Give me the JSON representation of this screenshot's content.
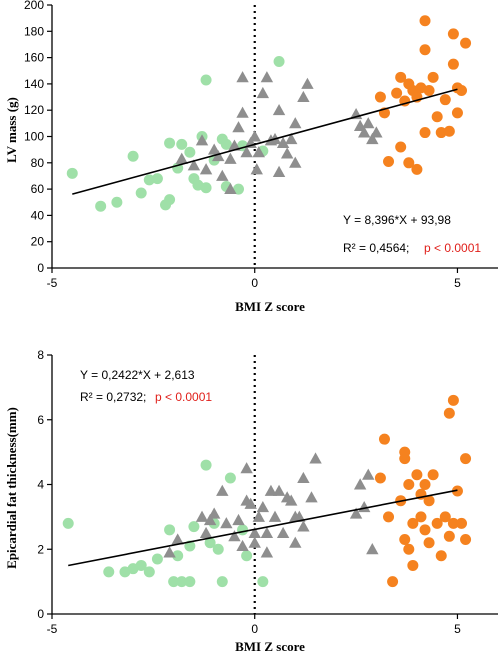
{
  "chart_data": [
    {
      "type": "scatter",
      "title": "",
      "xlabel": "BMI Z score",
      "ylabel": "LV mass (g)",
      "xlim": [
        -5,
        6
      ],
      "ylim": [
        0,
        200
      ],
      "xticks": [
        -5,
        0,
        5
      ],
      "xtick_labels": [
        "-5",
        "0",
        "5"
      ],
      "yticks": [
        0,
        20,
        40,
        60,
        80,
        100,
        120,
        140,
        160,
        180,
        200
      ],
      "ytick_labels": [
        "0",
        "20",
        "40",
        "60",
        "80",
        "100",
        "120",
        "140",
        "160",
        "180",
        "200"
      ],
      "grid": false,
      "vline_x": 0,
      "regression": {
        "slope": 8.396,
        "intercept": 93.98,
        "x_range": [
          -4.5,
          5
        ]
      },
      "equation_text": "Y = 8,396*X + 93,98",
      "r2_text": "R² = 0,4564;",
      "p_text": "p < 0.0001",
      "colors": {
        "green": "#9fe0a8",
        "gray": "#8e8e8e",
        "orange": "#f5821f",
        "line": "#000000",
        "p_value": "#e0201b"
      },
      "series": [
        {
          "marker": "circle",
          "color": "#9fe0a8",
          "points": [
            [
              -4.5,
              72
            ],
            [
              -3.8,
              47
            ],
            [
              -3.4,
              50
            ],
            [
              -3.0,
              85
            ],
            [
              -2.8,
              57
            ],
            [
              -2.6,
              67
            ],
            [
              -2.4,
              68
            ],
            [
              -2.2,
              48
            ],
            [
              -2.1,
              95
            ],
            [
              -2.1,
              52
            ],
            [
              -1.9,
              76
            ],
            [
              -1.8,
              94
            ],
            [
              -1.6,
              88
            ],
            [
              -1.5,
              68
            ],
            [
              -1.4,
              63
            ],
            [
              -1.3,
              100
            ],
            [
              -1.2,
              143
            ],
            [
              -1.2,
              61
            ],
            [
              -1.0,
              82
            ],
            [
              -0.8,
              98
            ],
            [
              -0.7,
              94
            ],
            [
              -0.7,
              62
            ],
            [
              -0.4,
              60
            ],
            [
              -0.3,
              93
            ],
            [
              0.2,
              89
            ],
            [
              0.6,
              157
            ]
          ]
        },
        {
          "marker": "triangle",
          "color": "#8e8e8e",
          "points": [
            [
              -1.8,
              83
            ],
            [
              -1.5,
              78
            ],
            [
              -1.3,
              97
            ],
            [
              -1.2,
              75
            ],
            [
              -1.0,
              90
            ],
            [
              -0.9,
              85
            ],
            [
              -0.8,
              70
            ],
            [
              -0.6,
              60
            ],
            [
              -0.6,
              83
            ],
            [
              -0.5,
              93
            ],
            [
              -0.4,
              107
            ],
            [
              -0.3,
              118
            ],
            [
              -0.2,
              88
            ],
            [
              -0.1,
              95
            ],
            [
              0.0,
              100
            ],
            [
              0.05,
              75
            ],
            [
              0.1,
              88
            ],
            [
              0.2,
              133
            ],
            [
              0.3,
              145
            ],
            [
              0.4,
              97
            ],
            [
              0.5,
              98
            ],
            [
              0.6,
              73
            ],
            [
              0.6,
              120
            ],
            [
              0.7,
              95
            ],
            [
              0.8,
              87
            ],
            [
              0.9,
              98
            ],
            [
              1.0,
              80
            ],
            [
              1.0,
              110
            ],
            [
              1.2,
              130
            ],
            [
              1.3,
              140
            ],
            [
              -0.3,
              145
            ],
            [
              2.5,
              117
            ],
            [
              2.6,
              108
            ],
            [
              2.7,
              103
            ],
            [
              2.8,
              110
            ],
            [
              2.9,
              98
            ],
            [
              3.0,
              103
            ]
          ]
        },
        {
          "marker": "circle",
          "color": "#f5821f",
          "points": [
            [
              3.1,
              130
            ],
            [
              3.2,
              118
            ],
            [
              3.3,
              81
            ],
            [
              3.5,
              133
            ],
            [
              3.6,
              145
            ],
            [
              3.6,
              92
            ],
            [
              3.7,
              127
            ],
            [
              3.8,
              140
            ],
            [
              3.8,
              80
            ],
            [
              3.9,
              135
            ],
            [
              4.0,
              75
            ],
            [
              4.0,
              130
            ],
            [
              4.1,
              137
            ],
            [
              4.2,
              188
            ],
            [
              4.2,
              166
            ],
            [
              4.2,
              103
            ],
            [
              4.3,
              135
            ],
            [
              4.4,
              145
            ],
            [
              4.5,
              115
            ],
            [
              4.6,
              103
            ],
            [
              4.7,
              128
            ],
            [
              4.8,
              104
            ],
            [
              4.9,
              178
            ],
            [
              4.9,
              155
            ],
            [
              5.0,
              137
            ],
            [
              5.0,
              118
            ],
            [
              5.1,
              135
            ],
            [
              5.2,
              171
            ]
          ]
        }
      ]
    },
    {
      "type": "scatter",
      "title": "",
      "xlabel": "BMI Z score",
      "ylabel": "Epicardial fat thickness(mm)",
      "xlim": [
        -5,
        6
      ],
      "ylim": [
        0,
        8
      ],
      "xticks": [
        -5,
        0,
        5
      ],
      "xtick_labels": [
        "-5",
        "0",
        "5"
      ],
      "yticks": [
        0,
        2,
        4,
        6,
        8
      ],
      "ytick_labels": [
        "0",
        "2",
        "4",
        "6",
        "8"
      ],
      "grid": false,
      "vline_x": 0,
      "regression": {
        "slope": 0.2422,
        "intercept": 2.613,
        "x_range": [
          -4.6,
          5
        ]
      },
      "equation_text": "Y = 0,2422*X + 2,613",
      "r2_text": "R² = 0,2732;",
      "p_text": "p < 0.0001",
      "colors": {
        "green": "#9fe0a8",
        "gray": "#8e8e8e",
        "orange": "#f5821f",
        "line": "#000000",
        "p_value": "#e0201b"
      },
      "series": [
        {
          "marker": "circle",
          "color": "#9fe0a8",
          "points": [
            [
              -4.6,
              2.8
            ],
            [
              -3.6,
              1.3
            ],
            [
              -3.2,
              1.3
            ],
            [
              -3.0,
              1.4
            ],
            [
              -2.8,
              1.5
            ],
            [
              -2.6,
              1.3
            ],
            [
              -2.4,
              1.7
            ],
            [
              -2.1,
              2.6
            ],
            [
              -2.0,
              1.0
            ],
            [
              -1.9,
              1.8
            ],
            [
              -1.8,
              1.0
            ],
            [
              -1.6,
              1.0
            ],
            [
              -1.6,
              2.1
            ],
            [
              -1.5,
              2.7
            ],
            [
              -1.2,
              4.6
            ],
            [
              -1.1,
              2.2
            ],
            [
              -1.0,
              2.8
            ],
            [
              -0.9,
              2.0
            ],
            [
              -0.8,
              1.0
            ],
            [
              -0.6,
              4.2
            ],
            [
              -0.3,
              2.6
            ],
            [
              -0.2,
              1.8
            ],
            [
              0.2,
              1.0
            ]
          ]
        },
        {
          "marker": "triangle",
          "color": "#8e8e8e",
          "points": [
            [
              -2.1,
              1.9
            ],
            [
              -1.9,
              2.3
            ],
            [
              -1.3,
              3.0
            ],
            [
              -1.2,
              2.5
            ],
            [
              -1.1,
              2.9
            ],
            [
              -1.0,
              3.1
            ],
            [
              -0.8,
              3.8
            ],
            [
              -0.7,
              2.8
            ],
            [
              -0.5,
              2.4
            ],
            [
              -0.4,
              2.9
            ],
            [
              -0.3,
              2.1
            ],
            [
              -0.2,
              3.5
            ],
            [
              -0.1,
              3.4
            ],
            [
              0.0,
              2.2
            ],
            [
              0.0,
              2.5
            ],
            [
              0.1,
              3.0
            ],
            [
              0.2,
              3.3
            ],
            [
              0.3,
              2.5
            ],
            [
              0.3,
              1.9
            ],
            [
              0.4,
              3.8
            ],
            [
              0.5,
              3.0
            ],
            [
              0.6,
              3.8
            ],
            [
              0.7,
              2.5
            ],
            [
              0.8,
              3.6
            ],
            [
              0.9,
              3.5
            ],
            [
              1.0,
              2.2
            ],
            [
              1.0,
              3.0
            ],
            [
              1.1,
              3.0
            ],
            [
              1.2,
              2.7
            ],
            [
              1.2,
              4.2
            ],
            [
              1.4,
              3.6
            ],
            [
              1.5,
              4.8
            ],
            [
              -0.2,
              4.5
            ],
            [
              2.5,
              3.1
            ],
            [
              2.6,
              4.0
            ],
            [
              2.7,
              3.3
            ],
            [
              2.8,
              4.3
            ],
            [
              2.9,
              2.0
            ]
          ]
        },
        {
          "marker": "circle",
          "color": "#f5821f",
          "points": [
            [
              3.1,
              4.2
            ],
            [
              3.2,
              5.4
            ],
            [
              3.3,
              3.0
            ],
            [
              3.4,
              1.0
            ],
            [
              3.6,
              3.5
            ],
            [
              3.7,
              4.8
            ],
            [
              3.7,
              5.0
            ],
            [
              3.7,
              2.3
            ],
            [
              3.8,
              4.0
            ],
            [
              3.8,
              2.0
            ],
            [
              3.9,
              2.8
            ],
            [
              3.9,
              1.5
            ],
            [
              4.0,
              4.3
            ],
            [
              4.1,
              3.0
            ],
            [
              4.1,
              3.7
            ],
            [
              4.2,
              4.0
            ],
            [
              4.2,
              2.6
            ],
            [
              4.3,
              2.2
            ],
            [
              4.3,
              3.5
            ],
            [
              4.4,
              4.3
            ],
            [
              4.5,
              2.8
            ],
            [
              4.6,
              1.8
            ],
            [
              4.7,
              3.0
            ],
            [
              4.8,
              2.4
            ],
            [
              4.8,
              6.2
            ],
            [
              4.9,
              6.6
            ],
            [
              4.9,
              2.8
            ],
            [
              5.0,
              3.8
            ],
            [
              5.1,
              2.8
            ],
            [
              5.2,
              4.8
            ],
            [
              5.2,
              2.3
            ]
          ]
        }
      ]
    }
  ]
}
